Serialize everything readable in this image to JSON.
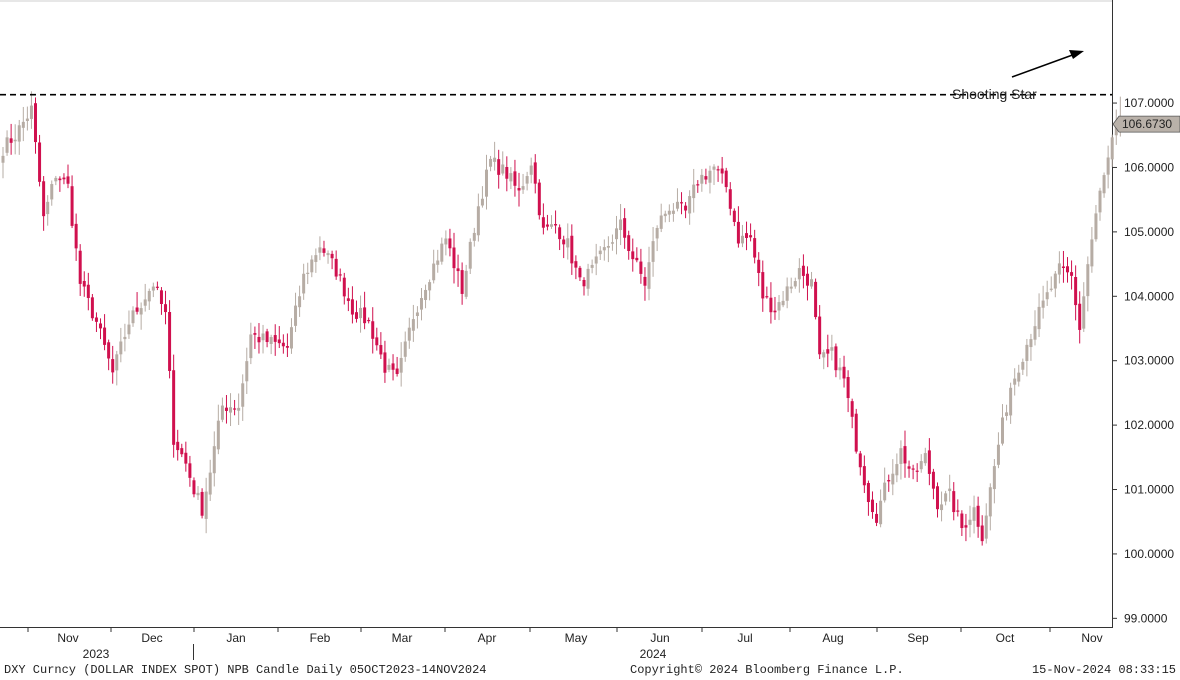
{
  "footer": {
    "left": "DXY Curncy (DOLLAR INDEX SPOT) NPB Candle  Daily 05OCT2023-14NOV2024",
    "center": "Copyright© 2024 Bloomberg Finance L.P.",
    "right": "15-Nov-2024 08:33:15"
  },
  "chart_data": {
    "type": "candlestick",
    "title": "",
    "xlabel": "",
    "ylabel": "",
    "ylim": [
      98.85,
      108.6
    ],
    "y_ticks": [
      "99.0000",
      "100.0000",
      "101.0000",
      "102.0000",
      "103.0000",
      "104.0000",
      "105.0000",
      "106.0000",
      "107.0000"
    ],
    "x_ticks": [
      "Nov",
      "Dec",
      "Jan",
      "Feb",
      "Mar",
      "Apr",
      "May",
      "Jun",
      "Jul",
      "Aug",
      "Sep",
      "Oct",
      "Nov"
    ],
    "year_labels": [
      "2023",
      "2024"
    ],
    "grid": false,
    "colors": {
      "up": "#b6aca4",
      "down": "#d0104e",
      "last_price_box": "#b9b1a9"
    },
    "last_price": 106.673,
    "last_price_label": "106.6730",
    "resistance_level": 107.13,
    "annotation": "Shooting Star",
    "waypoints": [
      [
        0,
        106.3
      ],
      [
        3,
        106.5
      ],
      [
        7,
        106.9
      ],
      [
        10,
        105.2
      ],
      [
        13,
        105.9
      ],
      [
        16,
        105.7
      ],
      [
        19,
        104.2
      ],
      [
        23,
        103.6
      ],
      [
        27,
        102.8
      ],
      [
        31,
        103.6
      ],
      [
        35,
        104.0
      ],
      [
        37,
        104.2
      ],
      [
        40,
        103.7
      ],
      [
        42,
        101.8
      ],
      [
        45,
        101.4
      ],
      [
        47,
        101.0
      ],
      [
        49,
        100.7
      ],
      [
        51,
        101.3
      ],
      [
        54,
        102.3
      ],
      [
        58,
        102.3
      ],
      [
        61,
        103.4
      ],
      [
        65,
        103.3
      ],
      [
        70,
        103.2
      ],
      [
        74,
        104.3
      ],
      [
        78,
        104.8
      ],
      [
        82,
        104.4
      ],
      [
        86,
        103.8
      ],
      [
        90,
        103.6
      ],
      [
        94,
        102.9
      ],
      [
        97,
        102.7
      ],
      [
        101,
        103.7
      ],
      [
        104,
        104.2
      ],
      [
        109,
        104.9
      ],
      [
        113,
        104.1
      ],
      [
        117,
        105.4
      ],
      [
        120,
        106.1
      ],
      [
        124,
        105.9
      ],
      [
        127,
        105.6
      ],
      [
        130,
        106.1
      ],
      [
        133,
        105.0
      ],
      [
        136,
        105.1
      ],
      [
        139,
        104.8
      ],
      [
        142,
        104.2
      ],
      [
        145,
        104.4
      ],
      [
        149,
        104.8
      ],
      [
        152,
        105.1
      ],
      [
        155,
        104.6
      ],
      [
        158,
        104.2
      ],
      [
        161,
        105.1
      ],
      [
        164,
        105.4
      ],
      [
        168,
        105.3
      ],
      [
        171,
        105.8
      ],
      [
        175,
        106.0
      ],
      [
        178,
        105.7
      ],
      [
        181,
        104.9
      ],
      [
        184,
        104.9
      ],
      [
        187,
        104.0
      ],
      [
        190,
        103.8
      ],
      [
        193,
        104.1
      ],
      [
        196,
        104.4
      ],
      [
        199,
        104.2
      ],
      [
        201,
        103.0
      ],
      [
        204,
        103.1
      ],
      [
        207,
        102.7
      ],
      [
        210,
        101.7
      ],
      [
        213,
        100.9
      ],
      [
        215,
        100.6
      ],
      [
        218,
        101.2
      ],
      [
        221,
        101.6
      ],
      [
        224,
        101.2
      ],
      [
        227,
        101.5
      ],
      [
        230,
        100.8
      ],
      [
        233,
        100.9
      ],
      [
        236,
        100.4
      ],
      [
        239,
        100.7
      ],
      [
        241,
        100.3
      ],
      [
        243,
        101.0
      ],
      [
        245,
        101.7
      ],
      [
        248,
        102.6
      ],
      [
        251,
        103.1
      ],
      [
        254,
        103.6
      ],
      [
        257,
        104.0
      ],
      [
        260,
        104.4
      ],
      [
        263,
        104.3
      ],
      [
        265,
        103.5
      ],
      [
        267,
        104.5
      ],
      [
        270,
        105.6
      ],
      [
        272,
        106.1
      ],
      [
        274,
        106.65
      ],
      [
        275,
        106.7
      ]
    ],
    "special_candles": [
      {
        "index": 274,
        "open": 106.5,
        "high": 106.9,
        "low": 106.35,
        "close": 106.65
      },
      {
        "index": 275,
        "open": 106.55,
        "high": 107.1,
        "low": 106.48,
        "close": 106.673
      }
    ]
  }
}
